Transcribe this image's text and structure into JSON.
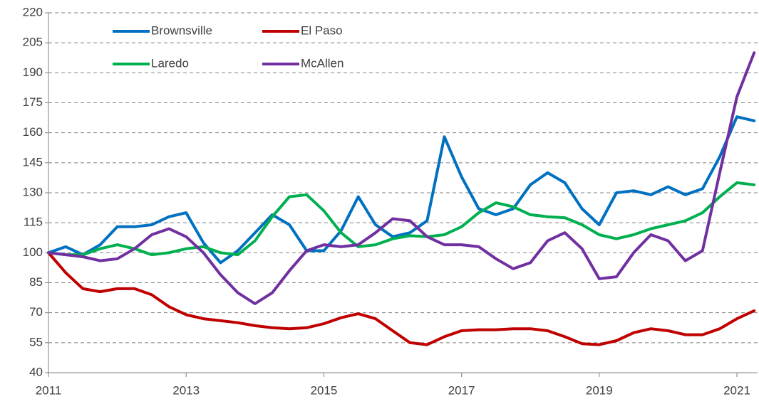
{
  "chart_data": {
    "type": "line",
    "x": [
      2011,
      2011.25,
      2011.5,
      2011.75,
      2012,
      2012.25,
      2012.5,
      2012.75,
      2013,
      2013.25,
      2013.5,
      2013.75,
      2014,
      2014.25,
      2014.5,
      2014.75,
      2015,
      2015.25,
      2015.5,
      2015.75,
      2016,
      2016.25,
      2016.5,
      2016.75,
      2017,
      2017.25,
      2017.5,
      2017.75,
      2018,
      2018.25,
      2018.5,
      2018.75,
      2019,
      2019.25,
      2019.5,
      2019.75,
      2020,
      2020.25,
      2020.5,
      2020.75,
      2021,
      2021.25
    ],
    "series": [
      {
        "name": "Brownsville",
        "color": "#0070c0",
        "values": [
          100,
          103,
          99,
          104,
          113,
          113,
          114,
          118,
          120,
          105,
          95,
          101,
          110,
          119,
          114,
          101,
          101,
          111,
          128,
          114,
          108,
          110,
          116,
          158,
          138,
          122,
          119,
          122,
          134,
          140,
          135,
          122,
          114,
          130,
          131,
          129,
          133,
          129,
          132,
          148,
          168,
          166
        ]
      },
      {
        "name": "El Paso",
        "color": "#c00000",
        "values": [
          100,
          90,
          82,
          80.5,
          82,
          82,
          79,
          73,
          69,
          67,
          66,
          65,
          63.5,
          62.5,
          62,
          62.5,
          64.5,
          67.5,
          69.5,
          67,
          61,
          55,
          54,
          58,
          61,
          61.5,
          61.5,
          62,
          62,
          61,
          58,
          54.5,
          54,
          56,
          60,
          62,
          61,
          59,
          59,
          62,
          67,
          71
        ]
      },
      {
        "name": "Laredo",
        "color": "#00b050",
        "values": [
          100,
          99,
          99,
          102,
          104,
          102,
          99,
          100,
          102,
          103,
          100,
          99,
          106,
          118,
          128,
          129,
          121,
          110,
          103,
          104,
          107,
          108.5,
          108,
          109,
          113,
          120,
          125,
          123,
          119,
          118,
          117.5,
          114,
          109,
          107,
          109,
          112,
          114,
          116,
          120,
          128,
          135,
          134
        ]
      },
      {
        "name": "McAllen",
        "color": "#7030a0",
        "values": [
          100,
          99,
          98,
          96,
          97,
          102,
          109,
          112,
          108,
          100,
          89,
          80,
          74.5,
          80,
          91,
          101,
          104,
          103,
          104,
          110,
          117,
          116,
          108,
          104,
          104,
          103,
          97,
          92,
          95,
          106,
          110,
          102,
          87,
          88,
          100,
          109,
          106,
          96,
          101,
          140,
          178,
          200
        ]
      }
    ],
    "xlim": [
      2011,
      2021.3
    ],
    "xticks": [
      2011,
      2013,
      2015,
      2017,
      2019,
      2021
    ],
    "ylim": [
      40,
      220
    ],
    "yticks": [
      40,
      55,
      70,
      85,
      100,
      115,
      130,
      145,
      160,
      175,
      190,
      205,
      220
    ],
    "grid": true,
    "legend": "top-left"
  }
}
